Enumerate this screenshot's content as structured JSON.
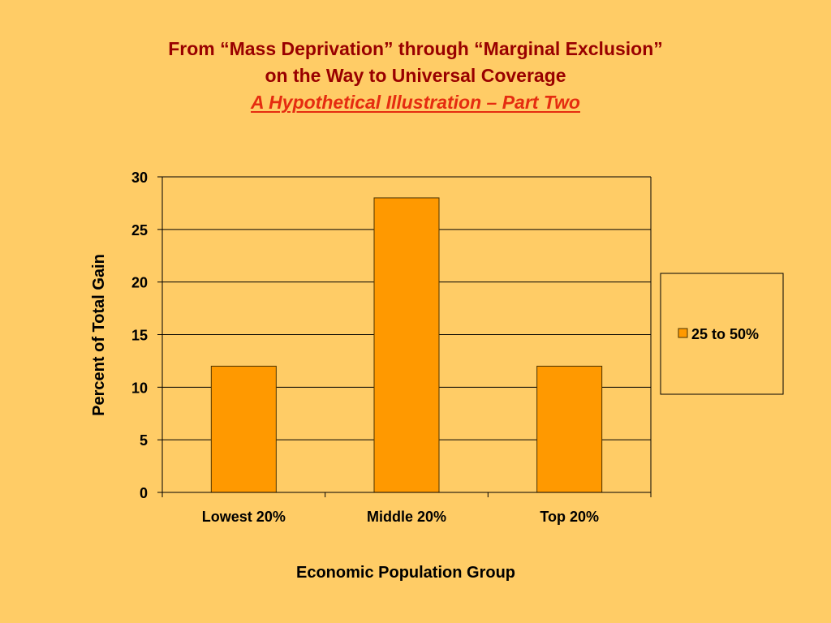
{
  "slide": {
    "title_line1": "From “Mass Deprivation” through “Marginal Exclusion”",
    "title_line2": "on the Way to Universal Coverage",
    "title_line3": "A Hypothetical Illustration – Part Two"
  },
  "colors": {
    "background": "#ffcc66",
    "bar_fill": "#ff9900",
    "bar_stroke": "#4d3300",
    "title": "#990000",
    "subtitle": "#e52c10",
    "gridline": "#000000"
  },
  "chart_data": {
    "type": "bar",
    "categories": [
      "Lowest 20%",
      "Middle 20%",
      "Top 20%"
    ],
    "series": [
      {
        "name": "25 to 50%",
        "values": [
          12,
          28,
          12
        ]
      }
    ],
    "xlabel": "Economic Population Group",
    "ylabel": "Percent of Total Gain",
    "ylim": [
      0,
      30
    ],
    "yticks": [
      0,
      5,
      10,
      15,
      20,
      25,
      30
    ],
    "grid": true,
    "legend_position": "right"
  }
}
